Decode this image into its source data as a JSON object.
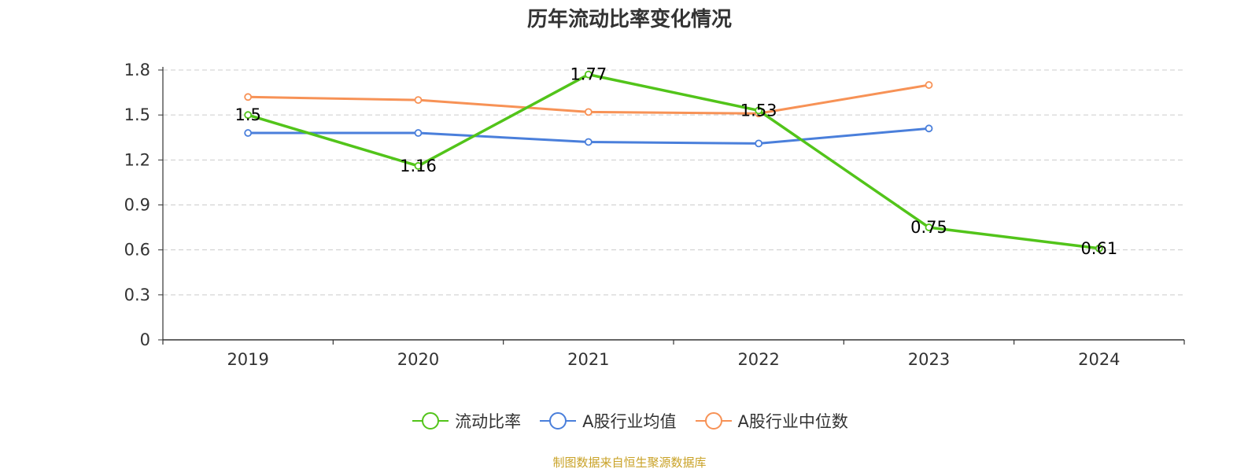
{
  "chart_data": {
    "type": "line",
    "title": "历年流动比率变化情况",
    "categories": [
      "2019",
      "2020",
      "2021",
      "2022",
      "2023",
      "2024"
    ],
    "ylim": [
      0,
      1.8
    ],
    "yticks": [
      "0",
      "0.3",
      "0.6",
      "0.9",
      "1.2",
      "1.5",
      "1.8"
    ],
    "grid": true,
    "legend_position": "bottom",
    "series": [
      {
        "name": "流动比率",
        "color": "#52c41a",
        "values": [
          1.5,
          1.16,
          1.77,
          1.53,
          0.75,
          0.61
        ],
        "labels": [
          "1.5",
          "1.16",
          "1.77",
          "1.53",
          "0.75",
          "0.61"
        ],
        "show_labels": true
      },
      {
        "name": "A股行业均值",
        "color": "#4a7fdb",
        "values": [
          1.38,
          1.38,
          1.32,
          1.31,
          1.41,
          null
        ],
        "show_labels": false
      },
      {
        "name": "A股行业中位数",
        "color": "#f79256",
        "values": [
          1.62,
          1.6,
          1.52,
          1.51,
          1.7,
          null
        ],
        "show_labels": false
      }
    ]
  },
  "source_text": "制图数据来自恒生聚源数据库"
}
